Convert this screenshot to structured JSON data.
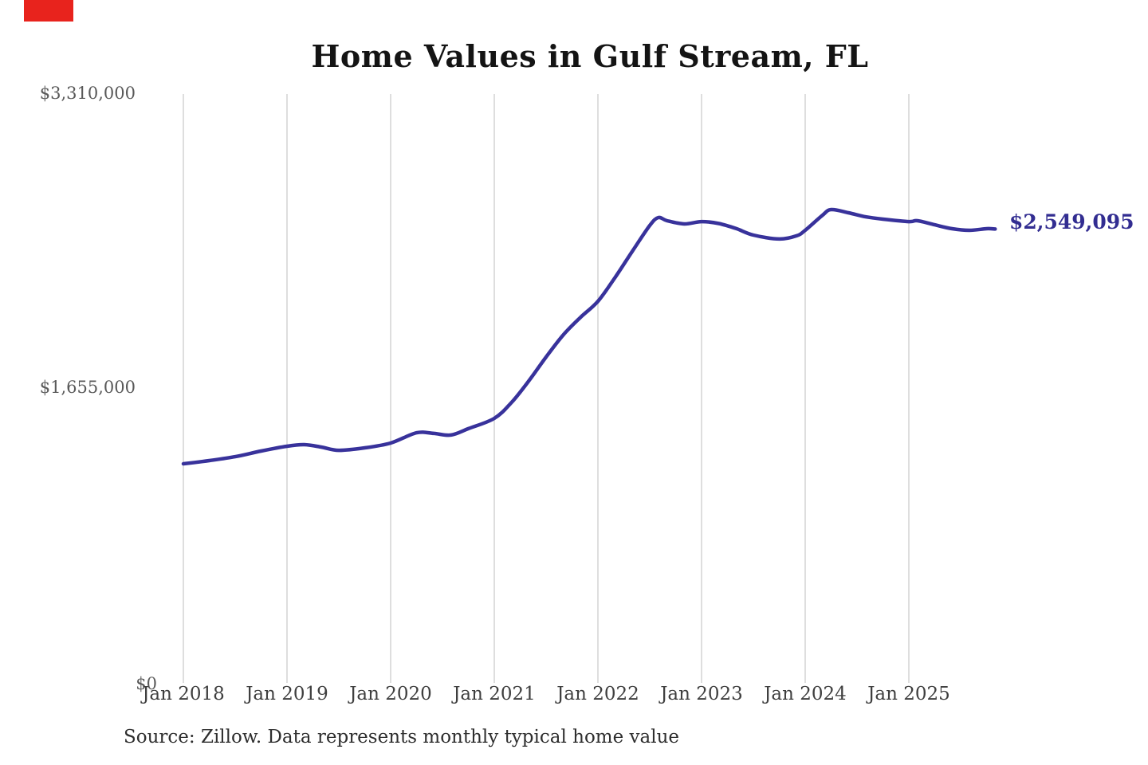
{
  "overlay": {
    "marker_color": "#e8231d"
  },
  "chart_data": {
    "type": "line",
    "title": "Home Values in Gulf Stream, FL",
    "source_note": "Source: Zillow. Data represents monthly typical home value",
    "x_axis": {
      "tick_labels": [
        "Jan 2018",
        "Jan 2019",
        "Jan 2020",
        "Jan 2021",
        "Jan 2022",
        "Jan 2023",
        "Jan 2024",
        "Jan 2025"
      ],
      "start": "2018-01",
      "end": "2025-11"
    },
    "y_axis": {
      "ticks": [
        {
          "label": "$0",
          "value": 0
        },
        {
          "label": "$1,655,000",
          "value": 1655000
        },
        {
          "label": "$3,310,000",
          "value": 3310000
        }
      ],
      "range": [
        0,
        3310000
      ]
    },
    "grid": {
      "vertical": true,
      "horizontal": false,
      "color": "#cccccc"
    },
    "annotations": {
      "end_value_label": "$2,549,095",
      "end_value": 2549095
    },
    "series": [
      {
        "name": "Monthly typical home value",
        "color": "#38329b",
        "points": [
          [
            "2018-01",
            1226000
          ],
          [
            "2018-04",
            1244000
          ],
          [
            "2018-07",
            1266000
          ],
          [
            "2018-10",
            1298000
          ],
          [
            "2019-01",
            1325000
          ],
          [
            "2019-03",
            1334000
          ],
          [
            "2019-05",
            1320000
          ],
          [
            "2019-07",
            1302000
          ],
          [
            "2019-10",
            1316000
          ],
          [
            "2020-01",
            1343000
          ],
          [
            "2020-04",
            1401000
          ],
          [
            "2020-06",
            1397000
          ],
          [
            "2020-08",
            1388000
          ],
          [
            "2020-10",
            1424000
          ],
          [
            "2021-01",
            1482000
          ],
          [
            "2021-03",
            1572000
          ],
          [
            "2021-05",
            1693000
          ],
          [
            "2021-07",
            1828000
          ],
          [
            "2021-09",
            1953000
          ],
          [
            "2021-11",
            2052000
          ],
          [
            "2022-01",
            2142000
          ],
          [
            "2022-03",
            2277000
          ],
          [
            "2022-05",
            2425000
          ],
          [
            "2022-07",
            2569000
          ],
          [
            "2022-08",
            2614000
          ],
          [
            "2022-09",
            2596000
          ],
          [
            "2022-11",
            2578000
          ],
          [
            "2023-01",
            2591000
          ],
          [
            "2023-03",
            2580000
          ],
          [
            "2023-05",
            2552000
          ],
          [
            "2023-07",
            2515000
          ],
          [
            "2023-10",
            2493000
          ],
          [
            "2023-12",
            2511000
          ],
          [
            "2024-01",
            2542000
          ],
          [
            "2024-03",
            2627000
          ],
          [
            "2024-04",
            2659000
          ],
          [
            "2024-06",
            2641000
          ],
          [
            "2024-08",
            2618000
          ],
          [
            "2024-10",
            2605000
          ],
          [
            "2025-01",
            2591000
          ],
          [
            "2025-02",
            2596000
          ],
          [
            "2025-04",
            2573000
          ],
          [
            "2025-06",
            2551000
          ],
          [
            "2025-08",
            2542000
          ],
          [
            "2025-10",
            2551000
          ],
          [
            "2025-11",
            2549095
          ]
        ]
      }
    ]
  }
}
